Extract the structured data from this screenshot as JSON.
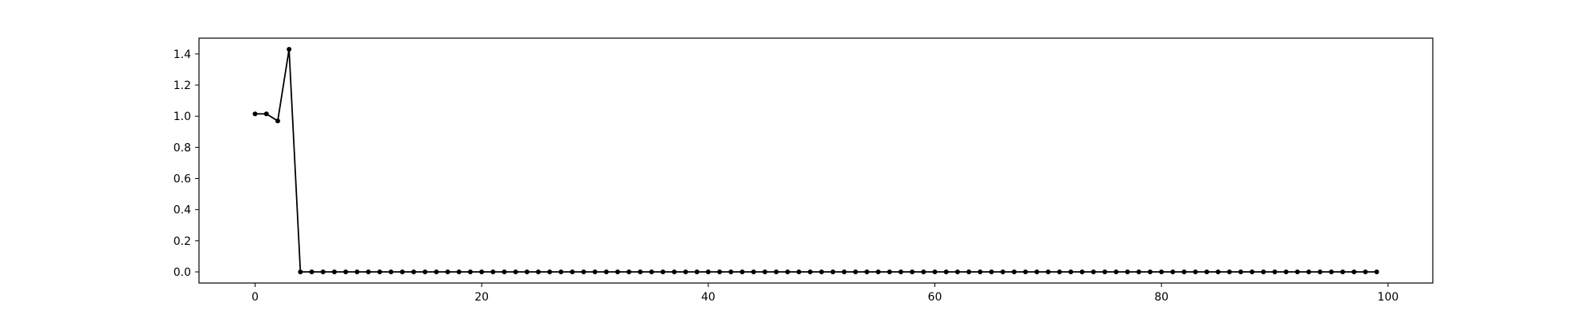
{
  "chart_data": {
    "type": "line",
    "title": "",
    "xlabel": "",
    "ylabel": "",
    "x": [
      0,
      1,
      2,
      3,
      4,
      5,
      6,
      7,
      8,
      9,
      10,
      11,
      12,
      13,
      14,
      15,
      16,
      17,
      18,
      19,
      20,
      21,
      22,
      23,
      24,
      25,
      26,
      27,
      28,
      29,
      30,
      31,
      32,
      33,
      34,
      35,
      36,
      37,
      38,
      39,
      40,
      41,
      42,
      43,
      44,
      45,
      46,
      47,
      48,
      49,
      50,
      51,
      52,
      53,
      54,
      55,
      56,
      57,
      58,
      59,
      60,
      61,
      62,
      63,
      64,
      65,
      66,
      67,
      68,
      69,
      70,
      71,
      72,
      73,
      74,
      75,
      76,
      77,
      78,
      79,
      80,
      81,
      82,
      83,
      84,
      85,
      86,
      87,
      88,
      89,
      90,
      91,
      92,
      93,
      94,
      95,
      96,
      97,
      98,
      99
    ],
    "series": [
      {
        "values": [
          1.015,
          1.015,
          0.97,
          1.43,
          0,
          0,
          0,
          0,
          0,
          0,
          0,
          0,
          0,
          0,
          0,
          0,
          0,
          0,
          0,
          0,
          0,
          0,
          0,
          0,
          0,
          0,
          0,
          0,
          0,
          0,
          0,
          0,
          0,
          0,
          0,
          0,
          0,
          0,
          0,
          0,
          0,
          0,
          0,
          0,
          0,
          0,
          0,
          0,
          0,
          0,
          0,
          0,
          0,
          0,
          0,
          0,
          0,
          0,
          0,
          0,
          0,
          0,
          0,
          0,
          0,
          0,
          0,
          0,
          0,
          0,
          0,
          0,
          0,
          0,
          0,
          0,
          0,
          0,
          0,
          0,
          0,
          0,
          0,
          0,
          0,
          0,
          0,
          0,
          0,
          0,
          0,
          0,
          0,
          0,
          0,
          0,
          0,
          0,
          0,
          0
        ],
        "color": "#000000",
        "marker": "dot"
      }
    ],
    "xlim": [
      -4.95,
      103.95
    ],
    "ylim": [
      -0.0715,
      1.5015
    ],
    "xticks": [
      0,
      20,
      40,
      60,
      80,
      100
    ],
    "xtick_labels": [
      "0",
      "20",
      "40",
      "60",
      "80",
      "100"
    ],
    "yticks": [
      0.0,
      0.2,
      0.4,
      0.6,
      0.8,
      1.0,
      1.2,
      1.4
    ],
    "ytick_labels": [
      "0.0",
      "0.2",
      "0.4",
      "0.6",
      "0.8",
      "1.0",
      "1.2",
      "1.4"
    ],
    "grid": false,
    "legend": "none"
  }
}
